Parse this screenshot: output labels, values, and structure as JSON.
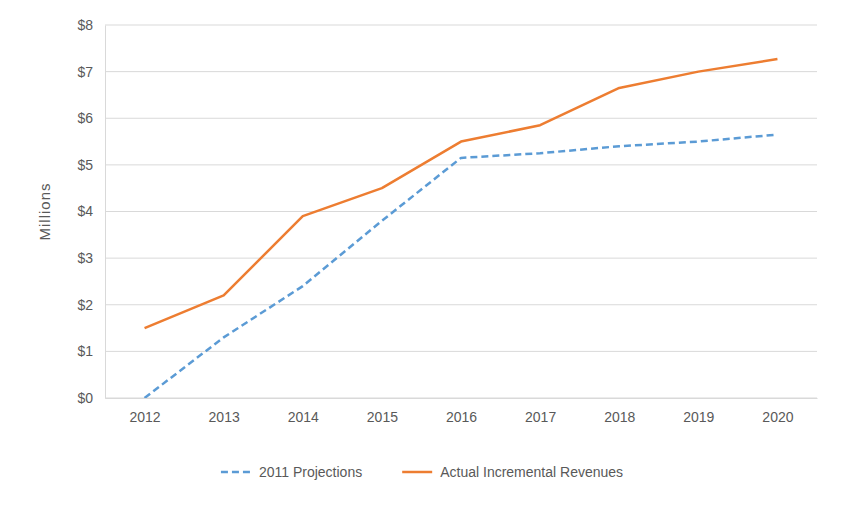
{
  "chart_data": {
    "type": "line",
    "y_label": "Millions",
    "categories": [
      "2012",
      "2013",
      "2014",
      "2015",
      "2016",
      "2017",
      "2018",
      "2019",
      "2020"
    ],
    "series": [
      {
        "name": "2011 Projections",
        "color": "#5b9bd5",
        "line_style": "dashed",
        "values": [
          0,
          1.3,
          2.4,
          3.8,
          5.15,
          5.25,
          5.4,
          5.5,
          5.65
        ]
      },
      {
        "name": "Actual Incremental Revenues",
        "color": "#ed7d31",
        "line_style": "solid",
        "values": [
          1.5,
          2.2,
          3.9,
          4.5,
          5.5,
          5.85,
          6.65,
          7.0,
          7.27
        ]
      }
    ],
    "ylim": [
      0,
      8
    ],
    "yticks": [
      {
        "value": 0,
        "label": "$0"
      },
      {
        "value": 1,
        "label": "$1"
      },
      {
        "value": 2,
        "label": "$2"
      },
      {
        "value": 3,
        "label": "$3"
      },
      {
        "value": 4,
        "label": "$4"
      },
      {
        "value": 5,
        "label": "$5"
      },
      {
        "value": 6,
        "label": "$6"
      },
      {
        "value": 7,
        "label": "$7"
      },
      {
        "value": 8,
        "label": "$8"
      }
    ],
    "grid": true,
    "legend": "bottom"
  }
}
